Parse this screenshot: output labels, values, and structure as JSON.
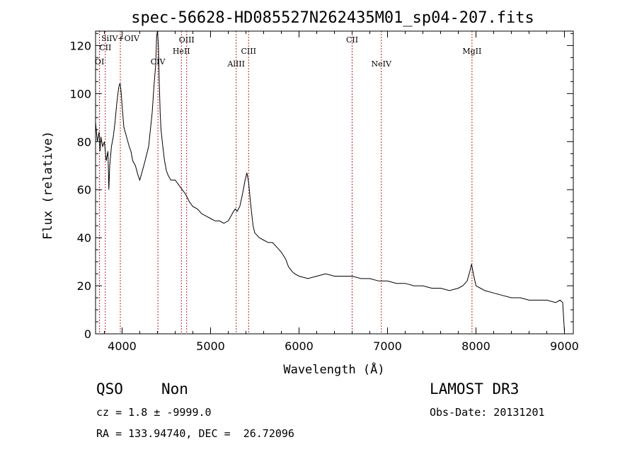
{
  "chart_data": {
    "type": "line",
    "title": "spec-56628-HD085527N262435M01_sp04-207.fits",
    "xlabel": "Wavelength (Å)",
    "ylabel": "Flux (relative)",
    "xlim": [
      3700,
      9100
    ],
    "ylim": [
      0,
      126
    ],
    "xticks": [
      4000,
      5000,
      6000,
      7000,
      8000,
      9000
    ],
    "yticks": [
      0,
      20,
      40,
      60,
      80,
      100,
      120
    ],
    "grid": false,
    "series": [
      {
        "x": [
          3700,
          3720,
          3740,
          3750,
          3760,
          3780,
          3800,
          3820,
          3840,
          3850,
          3860,
          3880,
          3900,
          3920,
          3940,
          3960,
          3970,
          3980,
          3990,
          4000,
          4020,
          4050,
          4080,
          4100,
          4120,
          4150,
          4180,
          4200,
          4230,
          4260,
          4300,
          4320,
          4340,
          4360,
          4380,
          4390,
          4400,
          4410,
          4420,
          4430,
          4440,
          4460,
          4480,
          4500,
          4520,
          4550,
          4600,
          4640,
          4680,
          4720,
          4760,
          4800,
          4850,
          4900,
          4950,
          5000,
          5050,
          5100,
          5150,
          5200,
          5230,
          5260,
          5280,
          5300,
          5330,
          5360,
          5390,
          5410,
          5430,
          5450,
          5480,
          5500,
          5550,
          5600,
          5650,
          5700,
          5750,
          5800,
          5850,
          5880,
          5900,
          5920,
          5950,
          6000,
          6100,
          6200,
          6300,
          6400,
          6500,
          6600,
          6700,
          6800,
          6900,
          7000,
          7100,
          7200,
          7300,
          7400,
          7500,
          7600,
          7700,
          7800,
          7850,
          7900,
          7930,
          7950,
          7970,
          8000,
          8050,
          8100,
          8200,
          8300,
          8400,
          8500,
          8600,
          8700,
          8800,
          8900,
          8950,
          8980,
          9000
        ],
        "y": [
          88,
          80,
          84,
          76,
          82,
          78,
          80,
          72,
          76,
          60,
          70,
          78,
          82,
          88,
          96,
          102,
          104,
          104,
          100,
          95,
          86,
          82,
          78,
          76,
          72,
          70,
          66,
          64,
          68,
          72,
          78,
          85,
          92,
          103,
          112,
          124,
          126,
          120,
          105,
          92,
          85,
          78,
          72,
          68,
          66,
          64,
          64,
          62,
          60,
          58,
          55,
          53,
          52,
          50,
          49,
          48,
          47,
          47,
          46,
          47,
          49,
          51,
          52,
          51,
          53,
          58,
          64,
          67,
          63,
          55,
          45,
          42,
          40,
          39,
          38,
          38,
          36,
          34,
          31,
          28,
          27,
          26,
          25,
          24,
          23,
          24,
          25,
          24,
          24,
          24,
          23,
          23,
          22,
          22,
          21,
          21,
          20,
          20,
          19,
          19,
          18,
          19,
          20,
          22,
          26,
          29,
          25,
          20,
          19,
          18,
          17,
          16,
          15,
          15,
          14,
          14,
          14,
          13,
          14,
          13,
          1
        ]
      }
    ],
    "line_markers": [
      {
        "label": "OI",
        "x": 3745
      },
      {
        "label": "CII",
        "x": 3810
      },
      {
        "label": "SiIV+OIV",
        "x": 3980
      },
      {
        "label": "CIV",
        "x": 4405
      },
      {
        "label": "HeII",
        "x": 4670
      },
      {
        "label": "OIII",
        "x": 4730
      },
      {
        "label": "AlIII",
        "x": 5290
      },
      {
        "label": "CIII",
        "x": 5430
      },
      {
        "label": "CII",
        "x": 6600
      },
      {
        "label": "NeIV",
        "x": 6930
      },
      {
        "label": "MgII",
        "x": 7955
      }
    ],
    "colors": {
      "spectrum": "#000000",
      "markers": "#b22222"
    }
  },
  "info": {
    "class": "QSO",
    "subclass": "Non",
    "survey": "LAMOST DR3",
    "cz": "cz = 1.8 ± -9999.0",
    "obs_date": "Obs-Date: 20131201",
    "coords": "RA = 133.94740, DEC =  26.72096"
  }
}
